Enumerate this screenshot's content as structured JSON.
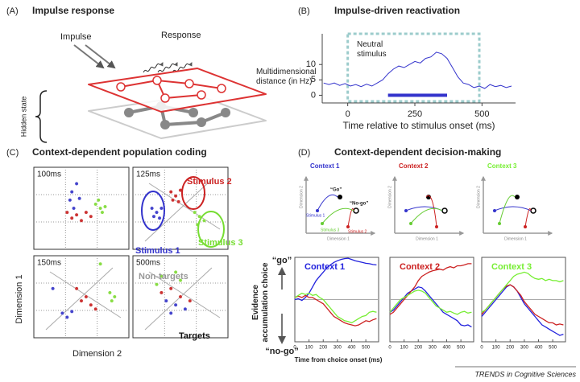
{
  "panel_a": {
    "letter": "(A)",
    "title": "Impulse response",
    "impulse": "Impulse",
    "response": "Response",
    "hidden_state": "Hidden state"
  },
  "panel_b": {
    "letter": "(B)",
    "title": "Impulse-driven reactivation",
    "chart": {
      "type": "line",
      "y_label": "Multidimensional distance (in Hz)",
      "x_label": "Time relative to stimulus onset (ms)",
      "annotation": "Neutral stimulus",
      "xlim": [
        -95,
        625
      ],
      "ylim": [
        -2.5,
        20
      ],
      "xticks": [
        0,
        250,
        500
      ],
      "yticks": [
        0,
        5,
        10
      ],
      "stimulus_window": [
        0,
        490
      ],
      "significance_bar": [
        150,
        370
      ],
      "color": "#3333cc",
      "window_color": "#9ccccc",
      "x": [
        -90,
        -70,
        -50,
        -30,
        -10,
        10,
        30,
        50,
        70,
        90,
        110,
        130,
        150,
        170,
        190,
        210,
        230,
        250,
        270,
        290,
        310,
        330,
        350,
        370,
        390,
        410,
        430,
        450,
        470,
        490,
        510,
        530,
        550,
        570,
        590,
        610
      ],
      "values": [
        4,
        3.5,
        4,
        3.2,
        3.8,
        3,
        3.5,
        2.8,
        3.6,
        3,
        4,
        5,
        7,
        8.5,
        9.5,
        9,
        10,
        11,
        10.5,
        12,
        12.5,
        14,
        13.5,
        12,
        9,
        6,
        4,
        3.5,
        2.5,
        3,
        2.2,
        3.5,
        2.8,
        3.2,
        2.5,
        3
      ]
    }
  },
  "panel_c": {
    "letter": "(C)",
    "title": "Context-dependent population coding",
    "x_label": "Dimension 2",
    "y_label": "Dimension 1",
    "stimulus_labels": [
      "Stimulus 1",
      "Stimulus 2",
      "Stimulus 3"
    ],
    "target_labels": [
      "Non-targets",
      "Targets"
    ],
    "plots": [
      {
        "type": "scatter",
        "label": "100ms",
        "groups": [
          {
            "color": "#4444cc",
            "points": [
              [
                0.45,
                0.8
              ],
              [
                0.4,
                0.7
              ],
              [
                0.48,
                0.62
              ],
              [
                0.42,
                0.5
              ],
              [
                0.38,
                0.6
              ]
            ]
          },
          {
            "color": "#cc3333",
            "points": [
              [
                0.35,
                0.45
              ],
              [
                0.45,
                0.42
              ],
              [
                0.55,
                0.45
              ],
              [
                0.5,
                0.35
              ],
              [
                0.4,
                0.38
              ],
              [
                0.6,
                0.4
              ]
            ]
          },
          {
            "color": "#88dd44",
            "points": [
              [
                0.65,
                0.55
              ],
              [
                0.7,
                0.5
              ],
              [
                0.75,
                0.52
              ],
              [
                0.68,
                0.6
              ],
              [
                0.72,
                0.45
              ]
            ]
          }
        ]
      },
      {
        "type": "scatter",
        "label": "125ms",
        "groups": [
          {
            "color": "#4444cc",
            "points": [
              [
                0.2,
                0.5
              ],
              [
                0.25,
                0.45
              ],
              [
                0.3,
                0.5
              ],
              [
                0.22,
                0.4
              ],
              [
                0.28,
                0.38
              ]
            ]
          },
          {
            "color": "#cc3333",
            "points": [
              [
                0.4,
                0.7
              ],
              [
                0.45,
                0.65
              ],
              [
                0.5,
                0.72
              ],
              [
                0.42,
                0.6
              ],
              [
                0.48,
                0.58
              ]
            ]
          },
          {
            "color": "#88dd44",
            "points": [
              [
                0.65,
                0.45
              ],
              [
                0.7,
                0.4
              ],
              [
                0.75,
                0.35
              ],
              [
                0.68,
                0.3
              ]
            ]
          }
        ]
      },
      {
        "type": "scatter",
        "label": "150ms",
        "groups": [
          {
            "color": "#4444cc",
            "points": [
              [
                0.2,
                0.6
              ],
              [
                0.3,
                0.3
              ],
              [
                0.35,
                0.25
              ],
              [
                0.4,
                0.32
              ]
            ]
          },
          {
            "color": "#cc3333",
            "points": [
              [
                0.55,
                0.5
              ],
              [
                0.6,
                0.4
              ],
              [
                0.65,
                0.35
              ],
              [
                0.5,
                0.45
              ],
              [
                0.45,
                0.6
              ]
            ]
          },
          {
            "color": "#88dd44",
            "points": [
              [
                0.8,
                0.55
              ],
              [
                0.85,
                0.5
              ],
              [
                0.7,
                0.9
              ],
              [
                0.82,
                0.45
              ]
            ]
          }
        ]
      },
      {
        "type": "scatter",
        "label": "500ms",
        "groups": [
          {
            "color": "#4444cc",
            "points": [
              [
                0.35,
                0.45
              ],
              [
                0.45,
                0.4
              ],
              [
                0.55,
                0.35
              ],
              [
                0.4,
                0.3
              ]
            ]
          },
          {
            "color": "#cc3333",
            "points": [
              [
                0.3,
                0.55
              ],
              [
                0.4,
                0.6
              ],
              [
                0.5,
                0.5
              ],
              [
                0.6,
                0.45
              ]
            ]
          },
          {
            "color": "#88dd44",
            "points": [
              [
                0.3,
                0.75
              ],
              [
                0.45,
                0.8
              ],
              [
                0.25,
                0.65
              ],
              [
                0.5,
                0.7
              ]
            ]
          }
        ]
      }
    ]
  },
  "panel_d": {
    "letter": "(D)",
    "title": "Context-dependent decision-making",
    "schematics": [
      {
        "context": "Context 1",
        "color": "#3333cc",
        "go": "“Go”",
        "nogo": "“No-go”",
        "stimuli": [
          "Stimulus 1",
          "Stimulus 2",
          "Stimulus 3"
        ],
        "dim1": "Dimension 1",
        "dim2": "Dimension 2"
      },
      {
        "context": "Context 2",
        "color": "#cc2222",
        "dim1": "Dimension 1",
        "dim2": "Dimension 2"
      },
      {
        "context": "Context 3",
        "color": "#77ee33",
        "dim1": "Dimension 1",
        "dim2": "Dimension 2"
      }
    ],
    "y_label": "Evidence accumulation choice",
    "y_top": "“go”",
    "y_bottom": "“no-go”",
    "x_label": "Time from choice onset (ms)",
    "xlim": [
      0,
      590
    ],
    "ylim": [
      -1,
      1
    ],
    "xticks": [
      0,
      100,
      200,
      300,
      400,
      500
    ],
    "x": [
      0,
      25,
      50,
      75,
      100,
      125,
      150,
      175,
      200,
      225,
      250,
      275,
      300,
      325,
      350,
      375,
      400,
      425,
      450,
      475,
      500,
      525,
      550,
      575
    ],
    "charts": [
      {
        "type": "line",
        "context": "Context 1",
        "color": "#2222dd",
        "series": [
          {
            "color": "#2222dd",
            "values": [
              0,
              0.02,
              -0.02,
              0.05,
              0.15,
              0.3,
              0.45,
              0.55,
              0.65,
              0.75,
              0.82,
              0.88,
              0.92,
              0.95,
              0.97,
              0.98,
              0.95,
              0.92,
              0.9,
              0.88,
              0.86,
              0.85,
              0.83,
              0.82
            ]
          },
          {
            "color": "#cc2222",
            "values": [
              0.05,
              0.08,
              0.05,
              0.1,
              0.05,
              0.05,
              0.0,
              -0.05,
              -0.1,
              -0.2,
              -0.3,
              -0.4,
              -0.45,
              -0.5,
              -0.55,
              -0.58,
              -0.6,
              -0.62,
              -0.6,
              -0.55,
              -0.5,
              -0.52,
              -0.48,
              -0.45
            ]
          },
          {
            "color": "#77ee33",
            "values": [
              0.05,
              0.1,
              0.15,
              0.12,
              0.15,
              0.1,
              0.12,
              0.05,
              0,
              -0.1,
              -0.2,
              -0.3,
              -0.4,
              -0.45,
              -0.5,
              -0.52,
              -0.55,
              -0.5,
              -0.45,
              -0.4,
              -0.38,
              -0.3,
              -0.28,
              -0.3
            ]
          }
        ]
      },
      {
        "type": "line",
        "context": "Context 2",
        "color": "#cc2222",
        "series": [
          {
            "color": "#2222dd",
            "values": [
              -0.3,
              -0.25,
              -0.15,
              -0.05,
              0.05,
              0.15,
              0.2,
              0.25,
              0.3,
              0.28,
              0.2,
              0.1,
              0,
              -0.1,
              -0.2,
              -0.3,
              -0.35,
              -0.4,
              -0.45,
              -0.5,
              -0.6,
              -0.62,
              -0.6,
              -0.65
            ]
          },
          {
            "color": "#cc2222",
            "values": [
              -0.35,
              -0.3,
              -0.2,
              -0.1,
              0,
              0.1,
              0.2,
              0.3,
              0.45,
              0.55,
              0.6,
              0.65,
              0.68,
              0.7,
              0.72,
              0.7,
              0.75,
              0.78,
              0.75,
              0.8,
              0.8,
              0.82,
              0.85,
              0.85
            ]
          },
          {
            "color": "#77ee33",
            "values": [
              -0.3,
              -0.2,
              -0.1,
              0,
              0.05,
              0.1,
              0.15,
              0.2,
              0.22,
              0.2,
              0.15,
              0.05,
              -0.05,
              -0.15,
              -0.2,
              -0.25,
              -0.3,
              -0.28,
              -0.32,
              -0.35,
              -0.3,
              -0.28,
              -0.32,
              -0.3
            ]
          }
        ]
      },
      {
        "type": "line",
        "context": "Context 3",
        "color": "#77ee33",
        "series": [
          {
            "color": "#2222dd",
            "values": [
              -0.4,
              -0.3,
              -0.2,
              -0.1,
              0,
              0.1,
              0.2,
              0.3,
              0.35,
              0.3,
              0.2,
              0.05,
              -0.1,
              -0.2,
              -0.3,
              -0.4,
              -0.5,
              -0.6,
              -0.65,
              -0.7,
              -0.75,
              -0.8,
              -0.85,
              -0.82
            ]
          },
          {
            "color": "#cc2222",
            "values": [
              -0.35,
              -0.25,
              -0.15,
              -0.05,
              0.05,
              0.15,
              0.25,
              0.32,
              0.35,
              0.3,
              0.2,
              0.1,
              -0.05,
              -0.15,
              -0.25,
              -0.35,
              -0.4,
              -0.45,
              -0.5,
              -0.55,
              -0.55,
              -0.6,
              -0.58,
              -0.6
            ]
          },
          {
            "color": "#77ee33",
            "values": [
              -0.3,
              -0.25,
              -0.15,
              -0.05,
              0.05,
              0.15,
              0.25,
              0.35,
              0.45,
              0.55,
              0.6,
              0.62,
              0.65,
              0.62,
              0.55,
              0.5,
              0.48,
              0.5,
              0.45,
              0.48,
              0.45,
              0.45,
              0.42,
              0.45
            ]
          }
        ]
      }
    ]
  },
  "footer": "TRENDS in Cognitive Sciences"
}
